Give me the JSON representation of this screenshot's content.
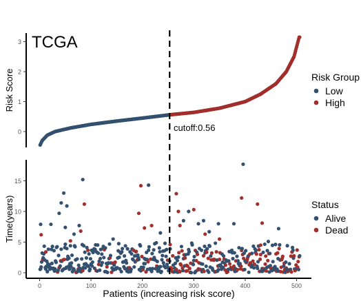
{
  "chart_data": [
    {
      "type": "scatter",
      "panel": "risk-score",
      "title": "TCGA",
      "ylabel": "Risk Score",
      "x_range": [
        0,
        506
      ],
      "ylim": [
        -0.5,
        3.2
      ],
      "yticks": [
        "0",
        "1",
        "2",
        "3"
      ],
      "cutoff_index": 253,
      "cutoff_label": "cutoff:0.56",
      "legend": {
        "title": "Risk Group",
        "placement": "right-top",
        "entries": [
          {
            "label": "Low",
            "color": "#33506f"
          },
          {
            "label": "High",
            "color": "#a12f2c"
          }
        ]
      },
      "curve_knots": {
        "x": [
          1,
          5,
          15,
          30,
          60,
          100,
          150,
          200,
          253,
          300,
          350,
          400,
          430,
          460,
          480,
          495,
          505
        ],
        "y": [
          -0.45,
          -0.3,
          -0.12,
          0.0,
          0.12,
          0.24,
          0.35,
          0.45,
          0.56,
          0.64,
          0.78,
          1.0,
          1.25,
          1.6,
          2.0,
          2.5,
          3.15
        ]
      }
    },
    {
      "type": "scatter",
      "panel": "survival-time",
      "xlabel": "Patients (increasing risk score)",
      "ylabel": "Time(years)",
      "x_range": [
        0,
        506
      ],
      "ylim": [
        -0.5,
        18.5
      ],
      "xticks": [
        "0",
        "100",
        "200",
        "300",
        "400",
        "500"
      ],
      "yticks": [
        "0",
        "5",
        "10",
        "15"
      ],
      "legend": {
        "title": "Status",
        "placement": "right-middle",
        "entries": [
          {
            "label": "Alive",
            "color": "#33506f"
          },
          {
            "label": "Dead",
            "color": "#a12f2c"
          }
        ]
      },
      "highlight_points": [
        {
          "x": 2,
          "y": 7.9,
          "status": "Alive"
        },
        {
          "x": 3,
          "y": 6.2,
          "status": "Dead"
        },
        {
          "x": 22,
          "y": 7.9,
          "status": "Alive"
        },
        {
          "x": 38,
          "y": 9.7,
          "status": "Alive"
        },
        {
          "x": 42,
          "y": 11.4,
          "status": "Alive"
        },
        {
          "x": 47,
          "y": 13.0,
          "status": "Alive"
        },
        {
          "x": 53,
          "y": 10.9,
          "status": "Alive"
        },
        {
          "x": 50,
          "y": 7.4,
          "status": "Alive"
        },
        {
          "x": 67,
          "y": 6.3,
          "status": "Alive"
        },
        {
          "x": 77,
          "y": 7.7,
          "status": "Alive"
        },
        {
          "x": 80,
          "y": 6.8,
          "status": "Dead"
        },
        {
          "x": 84,
          "y": 15.2,
          "status": "Alive"
        },
        {
          "x": 87,
          "y": 11.2,
          "status": "Dead"
        },
        {
          "x": 143,
          "y": 5.5,
          "status": "Alive"
        },
        {
          "x": 193,
          "y": 9.7,
          "status": "Dead"
        },
        {
          "x": 197,
          "y": 14.2,
          "status": "Dead"
        },
        {
          "x": 212,
          "y": 14.3,
          "status": "Alive"
        },
        {
          "x": 204,
          "y": 7.3,
          "status": "Dead"
        },
        {
          "x": 218,
          "y": 7.7,
          "status": "Dead"
        },
        {
          "x": 235,
          "y": 6.5,
          "status": "Alive"
        },
        {
          "x": 266,
          "y": 12.9,
          "status": "Dead"
        },
        {
          "x": 270,
          "y": 10.0,
          "status": "Dead"
        },
        {
          "x": 273,
          "y": 7.7,
          "status": "Dead"
        },
        {
          "x": 280,
          "y": 8.5,
          "status": "Alive"
        },
        {
          "x": 290,
          "y": 10.0,
          "status": "Alive"
        },
        {
          "x": 300,
          "y": 10.3,
          "status": "Dead"
        },
        {
          "x": 309,
          "y": 8.0,
          "status": "Alive"
        },
        {
          "x": 319,
          "y": 8.5,
          "status": "Alive"
        },
        {
          "x": 330,
          "y": 6.7,
          "status": "Alive"
        },
        {
          "x": 348,
          "y": 8.0,
          "status": "Alive"
        },
        {
          "x": 378,
          "y": 8.0,
          "status": "Alive"
        },
        {
          "x": 393,
          "y": 12.2,
          "status": "Dead"
        },
        {
          "x": 396,
          "y": 17.7,
          "status": "Alive"
        },
        {
          "x": 424,
          "y": 11.2,
          "status": "Dead"
        },
        {
          "x": 433,
          "y": 8.1,
          "status": "Dead"
        },
        {
          "x": 465,
          "y": 7.2,
          "status": "Alive"
        },
        {
          "x": 350,
          "y": 5.5,
          "status": "Dead"
        },
        {
          "x": 322,
          "y": 6.3,
          "status": "Dead"
        },
        {
          "x": 254,
          "y": 4.6,
          "status": "Dead"
        },
        {
          "x": 60,
          "y": 5.2,
          "status": "Dead"
        },
        {
          "x": 12,
          "y": 3.4,
          "status": "Dead"
        },
        {
          "x": 430,
          "y": 4.5,
          "status": "Dead"
        },
        {
          "x": 445,
          "y": 5.1,
          "status": "Alive"
        }
      ]
    }
  ]
}
